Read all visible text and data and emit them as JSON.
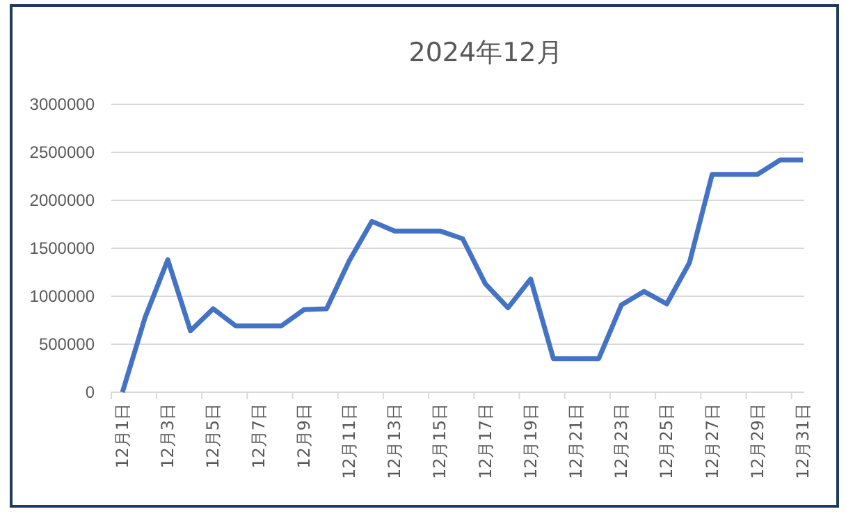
{
  "chart_data": {
    "type": "line",
    "title": "2024年12月",
    "categories": [
      "12月1日",
      null,
      "12月3日",
      null,
      "12月5日",
      null,
      "12月7日",
      null,
      "12月9日",
      null,
      "12月11日",
      null,
      "12月13日",
      null,
      "12月15日",
      null,
      "12月17日",
      null,
      "12月19日",
      null,
      "12月21日",
      null,
      "12月23日",
      null,
      "12月25日",
      null,
      "12月27日",
      null,
      "12月29日",
      null,
      "12月31日"
    ],
    "series": [
      {
        "color": "#4472c4",
        "values": [
          0,
          780000,
          1380000,
          640000,
          870000,
          690000,
          690000,
          690000,
          860000,
          870000,
          1370000,
          1780000,
          1680000,
          1680000,
          1680000,
          1600000,
          1130000,
          880000,
          1180000,
          350000,
          350000,
          350000,
          910000,
          1050000,
          920000,
          1350000,
          2270000,
          2270000,
          2270000,
          2420000,
          2420000
        ]
      }
    ],
    "ylim": [
      0,
      3000000
    ],
    "yticks": [
      0,
      500000,
      1000000,
      1500000,
      2000000,
      2500000,
      3000000
    ],
    "grid": "y",
    "marker": "none",
    "line_style": "solid"
  }
}
